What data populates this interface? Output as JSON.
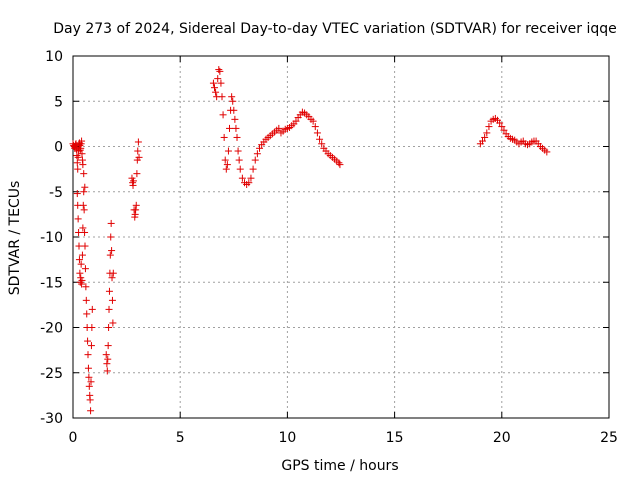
{
  "chart_data": {
    "type": "scatter",
    "title": "Day 273 of 2024, Sidereal Day-to-day VTEC variation (SDTVAR) for receiver iqqe",
    "xlabel": "GPS time / hours",
    "ylabel": "SDTVAR / TECUs",
    "xlim": [
      0,
      25
    ],
    "ylim": [
      -30,
      10
    ],
    "xticks": [
      0,
      5,
      10,
      15,
      20,
      25
    ],
    "yticks": [
      -30,
      -25,
      -20,
      -15,
      -10,
      -5,
      0,
      5,
      10
    ],
    "grid": true,
    "marker": "+",
    "color": "#e00000",
    "series": [
      {
        "name": "SDTVAR",
        "x": [
          0.0,
          0.03,
          0.06,
          0.08,
          0.1,
          0.12,
          0.14,
          0.16,
          0.18,
          0.2,
          0.22,
          0.24,
          0.26,
          0.28,
          0.3,
          0.32,
          0.34,
          0.36,
          0.38,
          0.4,
          0.42,
          0.44,
          0.46,
          0.5,
          0.55,
          0.2,
          0.22,
          0.24,
          0.26,
          0.28,
          0.3,
          0.32,
          0.34,
          0.36,
          0.38,
          0.4,
          0.42,
          0.44,
          0.46,
          0.48,
          0.5,
          0.52,
          0.54,
          0.56,
          0.58,
          0.6,
          0.62,
          0.64,
          0.66,
          0.68,
          0.7,
          0.72,
          0.74,
          0.76,
          0.78,
          0.8,
          0.82,
          0.84,
          0.86,
          0.88,
          0.9,
          1.55,
          1.58,
          1.6,
          1.62,
          1.64,
          1.66,
          1.68,
          1.7,
          1.72,
          1.74,
          1.76,
          1.78,
          1.8,
          1.82,
          1.84,
          1.86,
          1.88,
          2.75,
          2.78,
          2.8,
          2.82,
          2.85,
          2.88,
          2.9,
          2.92,
          2.95,
          2.98,
          3.0,
          3.02,
          3.05,
          3.08,
          6.55,
          6.6,
          6.65,
          6.7,
          6.75,
          6.8,
          6.85,
          6.9,
          6.95,
          7.0,
          7.05,
          7.1,
          7.15,
          7.2,
          7.25,
          7.3,
          7.35,
          7.4,
          7.45,
          7.5,
          7.55,
          7.6,
          7.65,
          7.7,
          7.75,
          7.8,
          7.9,
          8.0,
          8.1,
          8.2,
          8.3,
          8.4,
          8.5,
          8.6,
          8.7,
          8.8,
          8.9,
          9.0,
          9.1,
          9.2,
          9.3,
          9.4,
          9.5,
          9.6,
          9.7,
          9.8,
          9.9,
          10.0,
          10.1,
          10.2,
          10.3,
          10.4,
          10.5,
          10.6,
          10.7,
          10.8,
          10.9,
          11.0,
          11.1,
          11.2,
          11.3,
          11.4,
          11.5,
          11.6,
          11.7,
          11.8,
          11.9,
          12.0,
          12.1,
          12.2,
          12.3,
          12.4,
          12.45,
          19.0,
          19.1,
          19.2,
          19.3,
          19.4,
          19.5,
          19.6,
          19.7,
          19.8,
          19.9,
          20.0,
          20.1,
          20.2,
          20.3,
          20.4,
          20.5,
          20.6,
          20.7,
          20.8,
          20.9,
          21.0,
          21.1,
          21.2,
          21.3,
          21.4,
          21.5,
          21.6,
          21.7,
          21.8,
          21.9,
          22.0,
          22.1
        ],
        "y": [
          0.3,
          0.1,
          0.0,
          -0.2,
          -0.1,
          0.2,
          0.3,
          -0.3,
          -1.0,
          -1.8,
          -2.5,
          -1.2,
          -0.5,
          0.2,
          0.4,
          0.1,
          -0.4,
          -0.2,
          0.3,
          0.6,
          -0.8,
          -1.5,
          -2.0,
          -3.0,
          -4.5,
          -5.2,
          -6.5,
          -8.0,
          -9.5,
          -11.0,
          -12.5,
          -14.0,
          -15.0,
          -14.5,
          -13.0,
          -15.2,
          -14.8,
          -12.0,
          -9.0,
          -6.5,
          -5.0,
          -7.0,
          -9.5,
          -11.0,
          -13.5,
          -15.5,
          -17.0,
          -18.5,
          -20.0,
          -21.5,
          -23.0,
          -24.5,
          -25.5,
          -26.5,
          -27.5,
          -28.0,
          -29.2,
          -26.0,
          -22.0,
          -20.0,
          -18.0,
          -23.0,
          -24.0,
          -24.8,
          -23.5,
          -22.0,
          -20.0,
          -18.0,
          -16.0,
          -14.0,
          -12.0,
          -10.0,
          -8.5,
          -11.5,
          -14.5,
          -17.0,
          -19.5,
          -14.0,
          -3.5,
          -4.0,
          -4.3,
          -3.8,
          -7.0,
          -7.8,
          -7.5,
          -7.0,
          -6.5,
          -3.0,
          -1.5,
          -0.5,
          0.5,
          -1.2,
          7.0,
          6.5,
          6.0,
          5.5,
          7.5,
          8.5,
          8.3,
          7.0,
          5.5,
          3.5,
          1.0,
          -1.5,
          -2.5,
          -2.0,
          -0.5,
          2.0,
          4.0,
          5.5,
          5.0,
          4.0,
          3.0,
          2.0,
          1.0,
          -0.5,
          -1.5,
          -2.5,
          -3.5,
          -4.0,
          -4.2,
          -4.0,
          -3.5,
          -2.5,
          -1.5,
          -0.8,
          -0.2,
          0.2,
          0.5,
          0.8,
          1.0,
          1.2,
          1.4,
          1.6,
          1.8,
          2.0,
          1.5,
          1.7,
          1.9,
          2.0,
          2.1,
          2.3,
          2.5,
          2.8,
          3.2,
          3.5,
          3.8,
          3.7,
          3.5,
          3.3,
          3.0,
          2.8,
          2.2,
          1.5,
          0.8,
          0.3,
          -0.2,
          -0.5,
          -0.8,
          -1.0,
          -1.2,
          -1.4,
          -1.6,
          -1.8,
          -2.0,
          0.3,
          0.6,
          1.0,
          1.5,
          2.2,
          2.8,
          3.0,
          3.1,
          2.9,
          2.6,
          2.2,
          1.8,
          1.4,
          1.1,
          0.9,
          0.8,
          0.7,
          0.5,
          0.3,
          0.5,
          0.6,
          0.3,
          0.2,
          0.3,
          0.5,
          0.6,
          0.6,
          0.3,
          0.0,
          -0.2,
          -0.4,
          -0.6
        ]
      }
    ]
  }
}
